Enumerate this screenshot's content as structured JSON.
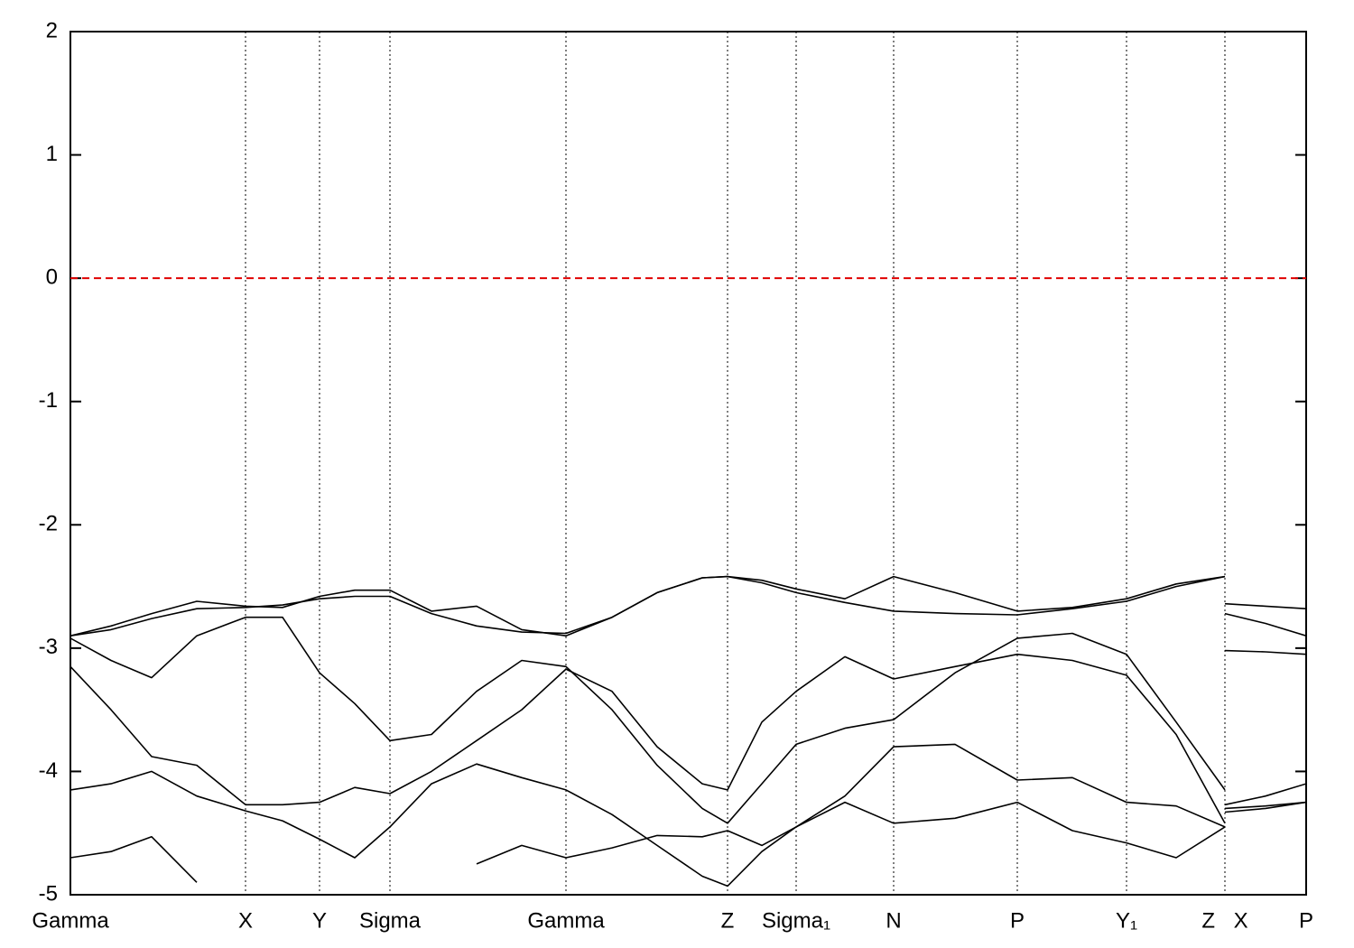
{
  "chart_data": {
    "type": "line",
    "xlim": [
      0,
      1369
    ],
    "ylim": [
      -5,
      2
    ],
    "yticks": [
      -5,
      -4,
      -3,
      -2,
      -1,
      0,
      1,
      2
    ],
    "xticks": [
      {
        "value": 0,
        "label": "Gamma"
      },
      {
        "value": 194,
        "label": "X"
      },
      {
        "value": 276,
        "label": "Y"
      },
      {
        "value": 354,
        "label": "Sigma"
      },
      {
        "value": 549,
        "label": "Gamma"
      },
      {
        "value": 728,
        "label": "Z"
      },
      {
        "value": 804,
        "label": "Sigma₁"
      },
      {
        "value": 912,
        "label": "N"
      },
      {
        "value": 1049,
        "label": "P"
      },
      {
        "value": 1170,
        "label": "Y₁"
      },
      {
        "value": 1279,
        "label": "Z X"
      },
      {
        "value": 1369,
        "label": "P"
      }
    ],
    "xgrid": true,
    "hlines": [
      {
        "value": 0,
        "color": "#e00000"
      }
    ],
    "x": [
      0,
      45,
      90,
      140,
      194,
      235,
      276,
      315,
      354,
      400,
      450,
      500,
      549,
      600,
      650,
      700,
      728,
      766,
      804,
      858,
      912,
      980,
      1049,
      1110,
      1170,
      1225,
      1279,
      1279,
      1279,
      1324,
      1369
    ],
    "series": [
      {
        "color": "#000000",
        "values": [
          -2.9,
          -2.82,
          -2.72,
          -2.62,
          -2.66,
          -2.67,
          -2.58,
          -2.53,
          -2.53,
          -2.7,
          -2.66,
          -2.85,
          -2.9,
          -2.75,
          -2.55,
          -2.43,
          -2.42,
          -2.45,
          -2.52,
          -2.6,
          -2.42,
          -2.55,
          -2.7,
          -2.67,
          -2.6,
          -2.48,
          -2.42,
          null,
          -2.64,
          -2.66,
          -2.68
        ]
      },
      {
        "color": "#000000",
        "values": [
          -2.9,
          -2.85,
          -2.76,
          -2.68,
          -2.67,
          -2.65,
          -2.6,
          -2.58,
          -2.58,
          -2.72,
          -2.82,
          -2.87,
          -2.88,
          -2.75,
          -2.55,
          -2.43,
          -2.42,
          -2.47,
          -2.55,
          -2.63,
          -2.7,
          -2.72,
          -2.73,
          -2.68,
          -2.62,
          -2.5,
          -2.42,
          null,
          -2.72,
          -2.8,
          -2.9
        ]
      },
      {
        "color": "#000000",
        "values": [
          -2.92,
          -3.1,
          -3.24,
          -2.9,
          -2.75,
          -2.75,
          -3.2,
          -3.45,
          -3.75,
          -3.7,
          -3.35,
          -3.1,
          -3.15,
          -3.5,
          -3.95,
          -4.3,
          -4.42,
          -4.1,
          -3.78,
          -3.65,
          -3.58,
          -3.2,
          -2.92,
          -2.88,
          -3.05,
          -3.6,
          -4.15,
          null,
          -3.02,
          -3.03,
          -3.05
        ]
      },
      {
        "color": "#000000",
        "values": [
          -3.15,
          -3.5,
          -3.88,
          -3.95,
          -4.27,
          -4.27,
          -4.25,
          -4.13,
          -4.18,
          -4.0,
          -3.75,
          -3.5,
          -3.17,
          -3.35,
          -3.8,
          -4.1,
          -4.15,
          -3.6,
          -3.35,
          -3.07,
          -3.25,
          -3.15,
          -3.05,
          -3.1,
          -3.22,
          -3.7,
          -4.42,
          null,
          -4.27,
          -4.2,
          -4.1
        ]
      },
      {
        "color": "#000000",
        "values": [
          -4.15,
          -4.1,
          -4.0,
          -4.2,
          -4.32,
          -4.4,
          -4.55,
          -4.7,
          -4.45,
          -4.1,
          -3.94,
          -4.05,
          -4.15,
          -4.35,
          -4.6,
          -4.85,
          -4.93,
          -4.65,
          -4.45,
          -4.25,
          -4.42,
          -4.38,
          -4.25,
          -4.48,
          -4.58,
          -4.7,
          -4.45,
          null,
          -4.33,
          -4.3,
          -4.25
        ]
      },
      {
        "color": "#000000",
        "values": [
          -4.7,
          -4.65,
          -4.53,
          -4.9,
          null,
          null,
          null,
          null,
          null,
          null,
          -4.75,
          -4.6,
          -4.7,
          -4.62,
          -4.52,
          -4.53,
          -4.48,
          -4.6,
          -4.45,
          -4.2,
          -3.8,
          -3.78,
          -4.07,
          -4.05,
          -4.25,
          -4.28,
          -4.45,
          null,
          -4.3,
          -4.28,
          -4.25
        ]
      }
    ]
  }
}
